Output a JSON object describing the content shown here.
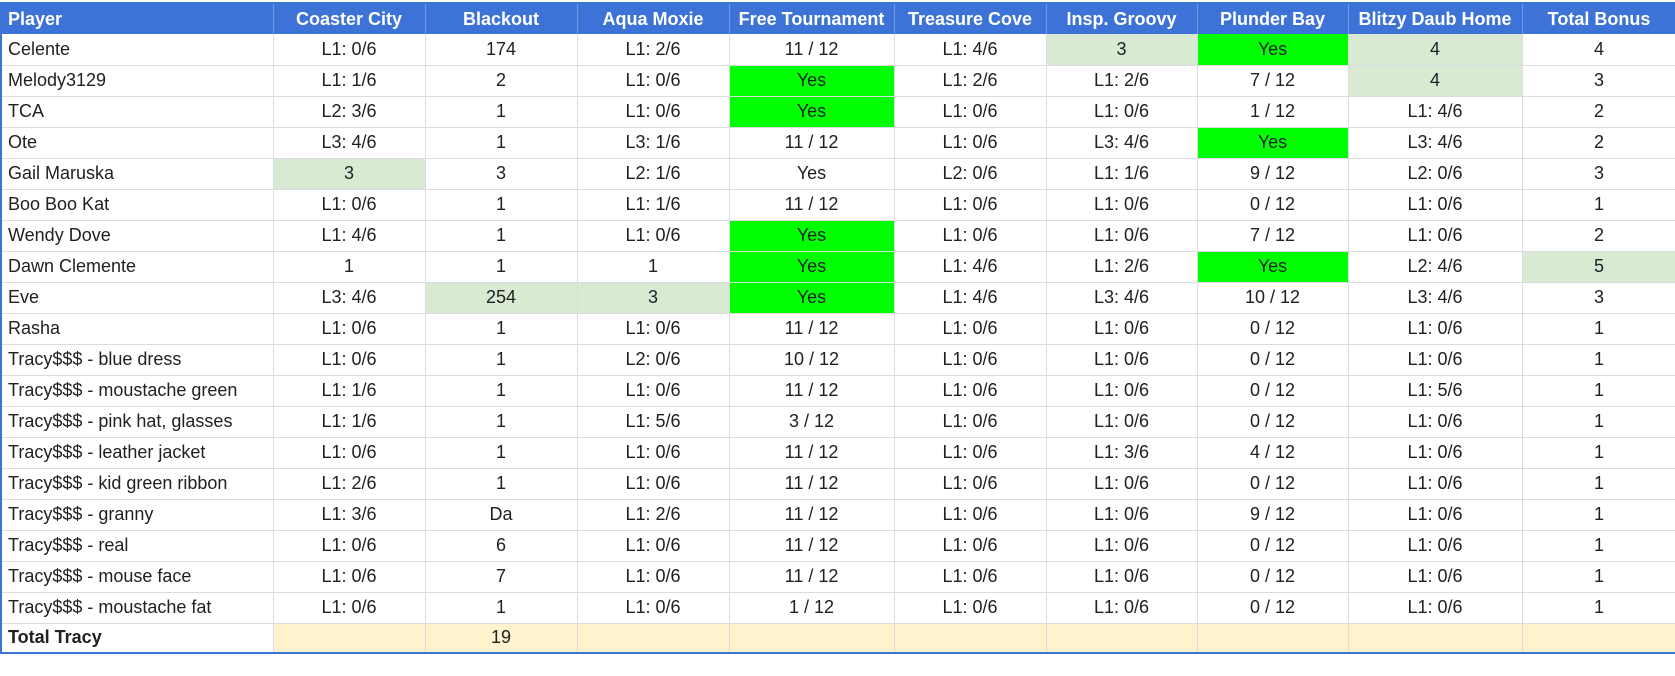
{
  "columns": [
    "Player",
    "Coaster City",
    "Blackout",
    "Aqua Moxie",
    "Free Tournament",
    "Treasure Cove",
    "Insp. Groovy",
    "Plunder Bay",
    "Blitzy Daub Home",
    "Total Bonus"
  ],
  "colors": {
    "header_bg": "#3d72d6",
    "highlight_light_green": "#d9ead3",
    "highlight_bright_green": "#00ff00",
    "total_row_bg": "#fff2cc"
  },
  "rows": [
    {
      "player": "Celente",
      "cells": [
        "L1: 0/6",
        "174",
        "L1: 2/6",
        "11 / 12",
        "L1: 4/6",
        "3",
        "Yes",
        "4",
        "4"
      ],
      "highlight": [
        "",
        "",
        "",
        "",
        "",
        "light",
        "green",
        "light",
        ""
      ]
    },
    {
      "player": "Melody3129",
      "cells": [
        "L1: 1/6",
        "2",
        "L1: 0/6",
        "Yes",
        "L1: 2/6",
        "L1: 2/6",
        "7 / 12",
        "4",
        "3"
      ],
      "highlight": [
        "",
        "",
        "",
        "green",
        "",
        "",
        "",
        "light",
        ""
      ]
    },
    {
      "player": "TCA",
      "cells": [
        "L2: 3/6",
        "1",
        "L1: 0/6",
        "Yes",
        "L1: 0/6",
        "L1: 0/6",
        "1 / 12",
        "L1: 4/6",
        "2"
      ],
      "highlight": [
        "",
        "",
        "",
        "green",
        "",
        "",
        "",
        "",
        ""
      ]
    },
    {
      "player": "Ote",
      "cells": [
        "L3: 4/6",
        "1",
        "L3: 1/6",
        "11 / 12",
        "L1: 0/6",
        "L3: 4/6",
        "Yes",
        "L3: 4/6",
        "2"
      ],
      "highlight": [
        "",
        "",
        "",
        "",
        "",
        "",
        "green",
        "",
        ""
      ]
    },
    {
      "player": "Gail Maruska",
      "cells": [
        "3",
        "3",
        "L2: 1/6",
        "Yes",
        "L2: 0/6",
        "L1: 1/6",
        "9 / 12",
        "L2: 0/6",
        "3"
      ],
      "highlight": [
        "light",
        "",
        "",
        "",
        "",
        "",
        "",
        "",
        ""
      ]
    },
    {
      "player": "Boo Boo Kat",
      "cells": [
        "L1: 0/6",
        "1",
        "L1: 1/6",
        "11 / 12",
        "L1: 0/6",
        "L1: 0/6",
        "0 / 12",
        "L1: 0/6",
        "1"
      ],
      "highlight": [
        "",
        "",
        "",
        "",
        "",
        "",
        "",
        "",
        ""
      ]
    },
    {
      "player": "Wendy Dove",
      "cells": [
        "L1: 4/6",
        "1",
        "L1: 0/6",
        "Yes",
        "L1: 0/6",
        "L1: 0/6",
        "7 / 12",
        "L1: 0/6",
        "2"
      ],
      "highlight": [
        "",
        "",
        "",
        "green",
        "",
        "",
        "",
        "",
        ""
      ]
    },
    {
      "player": "Dawn Clemente",
      "cells": [
        "1",
        "1",
        "1",
        "Yes",
        "L1: 4/6",
        "L1: 2/6",
        "Yes",
        "L2: 4/6",
        "5"
      ],
      "highlight": [
        "",
        "",
        "",
        "green",
        "",
        "",
        "green",
        "",
        "light"
      ]
    },
    {
      "player": "Eve",
      "cells": [
        "L3: 4/6",
        "254",
        "3",
        "Yes",
        "L1: 4/6",
        "L3: 4/6",
        "10 / 12",
        "L3: 4/6",
        "3"
      ],
      "highlight": [
        "",
        "light",
        "light",
        "green",
        "",
        "",
        "",
        "",
        ""
      ]
    },
    {
      "player": "Rasha",
      "cells": [
        "L1: 0/6",
        "1",
        "L1: 0/6",
        "11 / 12",
        "L1: 0/6",
        "L1: 0/6",
        "0 / 12",
        "L1: 0/6",
        "1"
      ],
      "highlight": [
        "",
        "",
        "",
        "",
        "",
        "",
        "",
        "",
        ""
      ]
    },
    {
      "player": "Tracy$$$ - blue dress",
      "cells": [
        "L1: 0/6",
        "1",
        "L2: 0/6",
        "10 / 12",
        "L1: 0/6",
        "L1: 0/6",
        "0 / 12",
        "L1: 0/6",
        "1"
      ],
      "highlight": [
        "",
        "",
        "",
        "",
        "",
        "",
        "",
        "",
        ""
      ]
    },
    {
      "player": "Tracy$$$ - moustache green",
      "cells": [
        "L1: 1/6",
        "1",
        "L1: 0/6",
        "11 / 12",
        "L1: 0/6",
        "L1: 0/6",
        "0 / 12",
        "L1: 5/6",
        "1"
      ],
      "highlight": [
        "",
        "",
        "",
        "",
        "",
        "",
        "",
        "",
        ""
      ]
    },
    {
      "player": "Tracy$$$ - pink hat, glasses",
      "cells": [
        "L1: 1/6",
        "1",
        "L1: 5/6",
        "3 / 12",
        "L1: 0/6",
        "L1: 0/6",
        "0 / 12",
        "L1: 0/6",
        "1"
      ],
      "highlight": [
        "",
        "",
        "",
        "",
        "",
        "",
        "",
        "",
        ""
      ]
    },
    {
      "player": "Tracy$$$ - leather jacket",
      "cells": [
        "L1: 0/6",
        "1",
        "L1: 0/6",
        "11 / 12",
        "L1: 0/6",
        "L1: 3/6",
        "4 / 12",
        "L1: 0/6",
        "1"
      ],
      "highlight": [
        "",
        "",
        "",
        "",
        "",
        "",
        "",
        "",
        ""
      ]
    },
    {
      "player": "Tracy$$$ - kid green ribbon",
      "cells": [
        "L1: 2/6",
        "1",
        "L1: 0/6",
        "11 / 12",
        "L1: 0/6",
        "L1: 0/6",
        "0 / 12",
        "L1: 0/6",
        "1"
      ],
      "highlight": [
        "",
        "",
        "",
        "",
        "",
        "",
        "",
        "",
        ""
      ]
    },
    {
      "player": "Tracy$$$ - granny",
      "cells": [
        "L1: 3/6",
        "Da",
        "L1: 2/6",
        "11 / 12",
        "L1: 0/6",
        "L1: 0/6",
        "9 / 12",
        "L1: 0/6",
        "1"
      ],
      "highlight": [
        "",
        "",
        "",
        "",
        "",
        "",
        "",
        "",
        ""
      ]
    },
    {
      "player": "Tracy$$$ - real",
      "cells": [
        "L1: 0/6",
        "6",
        "L1: 0/6",
        "11 / 12",
        "L1: 0/6",
        "L1: 0/6",
        "0 / 12",
        "L1: 0/6",
        "1"
      ],
      "highlight": [
        "",
        "",
        "",
        "",
        "",
        "",
        "",
        "",
        ""
      ]
    },
    {
      "player": "Tracy$$$ - mouse face",
      "cells": [
        "L1: 0/6",
        "7",
        "L1: 0/6",
        "11 / 12",
        "L1: 0/6",
        "L1: 0/6",
        "0 / 12",
        "L1: 0/6",
        "1"
      ],
      "highlight": [
        "",
        "",
        "",
        "",
        "",
        "",
        "",
        "",
        ""
      ]
    },
    {
      "player": "Tracy$$$ - moustache fat",
      "cells": [
        "L1: 0/6",
        "1",
        "L1: 0/6",
        "1 / 12",
        "L1: 0/6",
        "L1: 0/6",
        "0 / 12",
        "L1: 0/6",
        "1"
      ],
      "highlight": [
        "",
        "",
        "",
        "",
        "",
        "",
        "",
        "",
        ""
      ]
    }
  ],
  "total_row": {
    "label": "Total Tracy",
    "cells": [
      "",
      "19",
      "",
      "",
      "",
      "",
      "",
      "",
      ""
    ]
  }
}
